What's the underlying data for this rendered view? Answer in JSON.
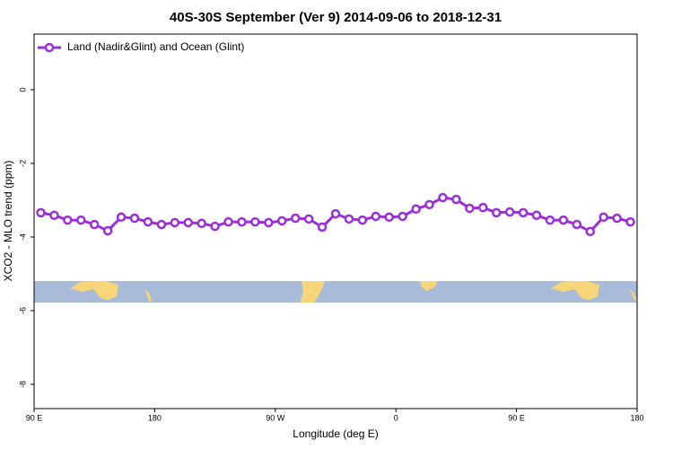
{
  "chart_data": {
    "type": "line",
    "title": "40S-30S September (Ver 9)   2014-09-06 to 2018-12-31",
    "xlabel": "Longitude (deg E)",
    "ylabel": "XCO2 - MLO trend (ppm)",
    "x": [
      95,
      105,
      115,
      125,
      135,
      145,
      155,
      165,
      175,
      185,
      195,
      205,
      215,
      225,
      235,
      245,
      255,
      265,
      275,
      285,
      295,
      305,
      315,
      325,
      335,
      345,
      355,
      365,
      375,
      385,
      395,
      405,
      415,
      425,
      435,
      445,
      455,
      465,
      475,
      485,
      495,
      505,
      515,
      525,
      535
    ],
    "series": [
      {
        "name": "Land (Nadir&Glint) and Ocean (Glint)",
        "color": "#9a2ed8",
        "values": [
          -3.34,
          -3.41,
          -3.54,
          -3.54,
          -3.66,
          -3.83,
          -3.46,
          -3.49,
          -3.59,
          -3.66,
          -3.61,
          -3.61,
          -3.63,
          -3.71,
          -3.59,
          -3.59,
          -3.59,
          -3.61,
          -3.56,
          -3.49,
          -3.51,
          -3.73,
          -3.37,
          -3.51,
          -3.54,
          -3.44,
          -3.46,
          -3.44,
          -3.24,
          -3.12,
          -2.93,
          -2.98,
          -3.22,
          -3.2,
          -3.34,
          -3.32,
          -3.34,
          -3.41,
          -3.54,
          -3.54,
          -3.66,
          -3.85,
          -3.46,
          -3.49,
          -3.59
        ]
      }
    ],
    "xlim": [
      90,
      540
    ],
    "xticks": [
      {
        "value": 90,
        "label": "90 E"
      },
      180,
      {
        "value": 270,
        "label": "90 W"
      },
      {
        "value": 360,
        "label": "0"
      },
      {
        "value": 450,
        "label": "90 E"
      },
      {
        "value": 540,
        "label": "180"
      }
    ],
    "ylim": [
      -8.66,
      1.51
    ],
    "yticks": [
      0,
      -2,
      -4,
      -6,
      -8
    ],
    "legend": "top-left"
  }
}
